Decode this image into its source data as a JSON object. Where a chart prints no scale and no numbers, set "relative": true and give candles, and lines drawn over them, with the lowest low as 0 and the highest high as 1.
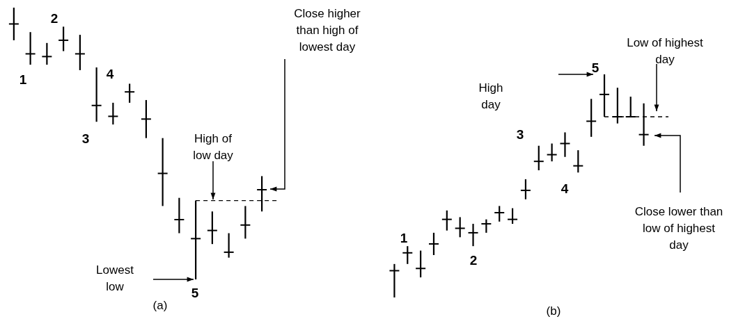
{
  "chart_data": [
    {
      "type": "candlestick",
      "relative": true,
      "title": "(a)",
      "color": "#000000",
      "categories": [
        null,
        null,
        null,
        null,
        null,
        null,
        null,
        null,
        null,
        null,
        null,
        null,
        null,
        null,
        null,
        null
      ],
      "ohlc": [
        [
          0.94,
          1.0,
          0.88,
          0.94
        ],
        [
          0.83,
          0.91,
          0.79,
          0.83
        ],
        [
          0.82,
          0.87,
          0.79,
          0.82
        ],
        [
          0.88,
          0.93,
          0.84,
          0.88
        ],
        [
          0.83,
          0.9,
          0.77,
          0.83
        ],
        [
          0.64,
          0.78,
          0.58,
          0.64
        ],
        [
          0.6,
          0.65,
          0.57,
          0.6
        ],
        [
          0.69,
          0.72,
          0.65,
          0.69
        ],
        [
          0.59,
          0.66,
          0.52,
          0.59
        ],
        [
          0.39,
          0.52,
          0.27,
          0.39
        ],
        [
          0.22,
          0.3,
          0.17,
          0.22
        ],
        [
          0.15,
          0.29,
          0.0,
          0.15
        ],
        [
          0.18,
          0.25,
          0.13,
          0.18
        ],
        [
          0.1,
          0.17,
          0.08,
          0.1
        ],
        [
          0.2,
          0.27,
          0.15,
          0.2
        ],
        [
          0.33,
          0.38,
          0.25,
          0.33
        ]
      ],
      "ref_lines": [
        {
          "axis": "y",
          "value": 0.29,
          "line_style": "dashed"
        }
      ],
      "annotations": [
        "1",
        "2",
        "3",
        "4",
        "5",
        "Lowest low",
        "High of low day",
        "Close higher than high of lowest day"
      ]
    },
    {
      "type": "candlestick",
      "relative": true,
      "title": "(b)",
      "color": "#000000",
      "categories": [
        null,
        null,
        null,
        null,
        null,
        null,
        null,
        null,
        null,
        null,
        null,
        null,
        null,
        null,
        null,
        null,
        null,
        null,
        null,
        null
      ],
      "ohlc": [
        [
          0.12,
          0.15,
          0.0,
          0.12
        ],
        [
          0.2,
          0.23,
          0.15,
          0.2
        ],
        [
          0.13,
          0.21,
          0.09,
          0.13
        ],
        [
          0.24,
          0.29,
          0.19,
          0.24
        ],
        [
          0.35,
          0.39,
          0.3,
          0.35
        ],
        [
          0.31,
          0.36,
          0.27,
          0.31
        ],
        [
          0.29,
          0.33,
          0.23,
          0.29
        ],
        [
          0.33,
          0.35,
          0.29,
          0.33
        ],
        [
          0.38,
          0.41,
          0.34,
          0.38
        ],
        [
          0.35,
          0.4,
          0.33,
          0.35
        ],
        [
          0.48,
          0.53,
          0.44,
          0.48
        ],
        [
          0.61,
          0.68,
          0.57,
          0.61
        ],
        [
          0.64,
          0.69,
          0.61,
          0.64
        ],
        [
          0.69,
          0.74,
          0.63,
          0.69
        ],
        [
          0.59,
          0.66,
          0.56,
          0.59
        ],
        [
          0.79,
          0.89,
          0.72,
          0.79
        ],
        [
          0.91,
          1.0,
          0.81,
          0.91
        ],
        [
          0.81,
          0.94,
          0.78,
          0.81
        ],
        [
          0.81,
          0.9,
          0.81,
          0.81
        ],
        [
          0.73,
          0.87,
          0.68,
          0.73
        ]
      ],
      "ref_lines": [
        {
          "axis": "y",
          "value": 0.81,
          "line_style": "dashed"
        }
      ],
      "annotations": [
        "1",
        "2",
        "3",
        "4",
        "5",
        "High day",
        "Low of highest day",
        "Close lower than low of highest day"
      ]
    }
  ]
}
